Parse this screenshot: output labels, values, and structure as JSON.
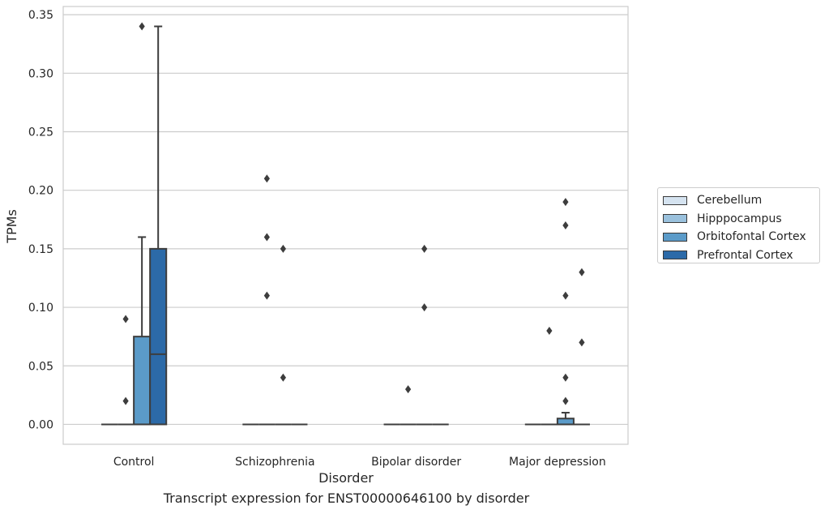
{
  "chart_data": {
    "type": "box",
    "title": "",
    "xlabel": "Disorder",
    "ylabel": "TPMs",
    "ylim": [
      -0.017,
      0.357
    ],
    "yticks": [
      0.0,
      0.05,
      0.1,
      0.15,
      0.2,
      0.25,
      0.3,
      0.35
    ],
    "ytick_labels": [
      "0.00",
      "0.05",
      "0.10",
      "0.15",
      "0.20",
      "0.25",
      "0.30",
      "0.35"
    ],
    "grid": "horizontal",
    "legend_position": "right",
    "categories": [
      "Control",
      "Schizophrenia",
      "Bipolar disorder",
      "Major depression"
    ],
    "series": [
      {
        "name": "Cerebellum",
        "color": "#d5e3f0",
        "boxes": [
          {
            "q1": 0,
            "median": 0,
            "q3": 0,
            "whisker_low": 0,
            "whisker_high": 0,
            "outliers": []
          },
          {
            "q1": 0,
            "median": 0,
            "q3": 0,
            "whisker_low": 0,
            "whisker_high": 0,
            "outliers": []
          },
          {
            "q1": 0,
            "median": 0,
            "q3": 0,
            "whisker_low": 0,
            "whisker_high": 0,
            "outliers": []
          },
          {
            "q1": 0,
            "median": 0,
            "q3": 0,
            "whisker_low": 0,
            "whisker_high": 0,
            "outliers": []
          }
        ]
      },
      {
        "name": "Hipppocampus",
        "color": "#9ac1dd",
        "boxes": [
          {
            "q1": 0,
            "median": 0,
            "q3": 0,
            "whisker_low": 0,
            "whisker_high": 0,
            "outliers": [
              0.09,
              0.02
            ]
          },
          {
            "q1": 0,
            "median": 0,
            "q3": 0,
            "whisker_low": 0,
            "whisker_high": 0,
            "outliers": [
              0.21,
              0.16,
              0.11
            ]
          },
          {
            "q1": 0,
            "median": 0,
            "q3": 0,
            "whisker_low": 0,
            "whisker_high": 0,
            "outliers": [
              0.03
            ]
          },
          {
            "q1": 0,
            "median": 0,
            "q3": 0,
            "whisker_low": 0,
            "whisker_high": 0,
            "outliers": [
              0.08
            ]
          }
        ]
      },
      {
        "name": "Orbitofontal Cortex",
        "color": "#5b9bc9",
        "boxes": [
          {
            "q1": 0,
            "median": 0,
            "q3": 0.075,
            "whisker_low": 0,
            "whisker_high": 0.16,
            "outliers": [
              0.34
            ]
          },
          {
            "q1": 0,
            "median": 0,
            "q3": 0,
            "whisker_low": 0,
            "whisker_high": 0,
            "outliers": [
              0.15,
              0.04
            ]
          },
          {
            "q1": 0,
            "median": 0,
            "q3": 0,
            "whisker_low": 0,
            "whisker_high": 0,
            "outliers": [
              0.15,
              0.1
            ]
          },
          {
            "q1": 0,
            "median": 0,
            "q3": 0.005,
            "whisker_low": 0,
            "whisker_high": 0.01,
            "outliers": [
              0.19,
              0.17,
              0.11,
              0.04,
              0.02
            ]
          }
        ]
      },
      {
        "name": "Prefrontal Cortex",
        "color": "#2c6aa8",
        "boxes": [
          {
            "q1": 0,
            "median": 0.06,
            "q3": 0.15,
            "whisker_low": 0,
            "whisker_high": 0.34,
            "outliers": []
          },
          {
            "q1": 0,
            "median": 0,
            "q3": 0,
            "whisker_low": 0,
            "whisker_high": 0,
            "outliers": []
          },
          {
            "q1": 0,
            "median": 0,
            "q3": 0,
            "whisker_low": 0,
            "whisker_high": 0,
            "outliers": []
          },
          {
            "q1": 0,
            "median": 0,
            "q3": 0,
            "whisker_low": 0,
            "whisker_high": 0,
            "outliers": [
              0.13,
              0.07
            ]
          }
        ]
      }
    ]
  },
  "caption": "Transcript expression for ENST00000646100 by disorder",
  "colors": {
    "grid": "#cccccc",
    "frame": "#cccccc",
    "line": "#3d3d3d",
    "text": "#262626"
  }
}
